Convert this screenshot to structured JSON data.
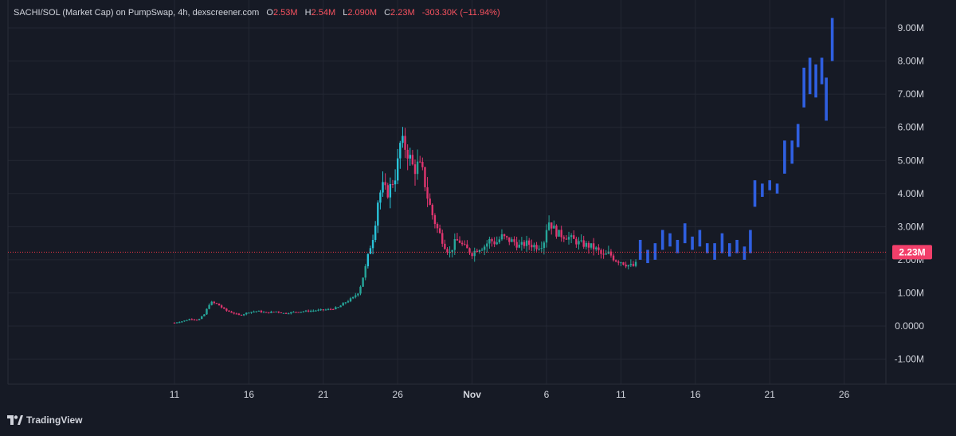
{
  "legend": {
    "symbol": "SACHI/SOL (Market Cap) on PumpSwap, 4h, dexscreener.com",
    "o_label": "O",
    "o_value": "2.53M",
    "h_label": "H",
    "h_value": "2.54M",
    "l_label": "L",
    "l_value": "2.090M",
    "c_label": "C",
    "c_value": "2.23M",
    "change": "-303.30K (−11.94%)"
  },
  "footer": {
    "brand": "TradingView"
  },
  "colors": {
    "background": "#161a25",
    "grid": "#232733",
    "up": "#26a69a",
    "up_cyan": "#29c3d9",
    "down": "#e0356f",
    "projection": "#2f5fe0",
    "price_line": "#f23645",
    "text": "#d1d4dc"
  },
  "chart_data": {
    "type": "candlestick",
    "title": "SACHI/SOL (Market Cap) on PumpSwap, 4h, dexscreener.com",
    "y_unit": "M",
    "ylim": [
      -1.5,
      9.5
    ],
    "y_ticks": [
      9,
      8,
      7,
      6,
      5,
      4,
      3,
      2,
      1,
      0,
      -1
    ],
    "y_tick_labels": [
      "9.00M",
      "8.00M",
      "7.00M",
      "6.00M",
      "5.00M",
      "4.00M",
      "3.00M",
      "2.00M",
      "1.00M",
      "0.0000",
      "-1.00M"
    ],
    "x_ticks": [
      {
        "day": 11,
        "label": "11",
        "bold": false
      },
      {
        "day": 16,
        "label": "16",
        "bold": false
      },
      {
        "day": 21,
        "label": "21",
        "bold": false
      },
      {
        "day": 26,
        "label": "26",
        "bold": false
      },
      {
        "day": 31,
        "label": "Nov",
        "bold": true
      },
      {
        "day": 36,
        "label": "6",
        "bold": false
      },
      {
        "day": 41,
        "label": "11",
        "bold": false
      },
      {
        "day": 46,
        "label": "16",
        "bold": false
      },
      {
        "day": 51,
        "label": "21",
        "bold": false
      },
      {
        "day": 56,
        "label": "26",
        "bold": false
      }
    ],
    "xlim": [
      0.3,
      57.3
    ],
    "current_price": 2.23,
    "current_price_label": "2.23M",
    "grid": true,
    "price_anchors": [
      [
        11.0,
        0.1
      ],
      [
        11.6,
        0.15
      ],
      [
        12.1,
        0.22
      ],
      [
        12.6,
        0.18
      ],
      [
        13.0,
        0.35
      ],
      [
        13.4,
        0.72
      ],
      [
        13.9,
        0.66
      ],
      [
        14.4,
        0.48
      ],
      [
        14.9,
        0.4
      ],
      [
        15.4,
        0.32
      ],
      [
        16.0,
        0.42
      ],
      [
        16.6,
        0.45
      ],
      [
        17.2,
        0.4
      ],
      [
        17.8,
        0.44
      ],
      [
        18.4,
        0.38
      ],
      [
        19.0,
        0.42
      ],
      [
        19.6,
        0.44
      ],
      [
        20.2,
        0.46
      ],
      [
        20.8,
        0.48
      ],
      [
        21.4,
        0.5
      ],
      [
        22.0,
        0.56
      ],
      [
        22.5,
        0.72
      ],
      [
        23.0,
        0.85
      ],
      [
        23.4,
        1.05
      ],
      [
        23.8,
        1.7
      ],
      [
        24.1,
        2.3
      ],
      [
        24.4,
        2.8
      ],
      [
        24.7,
        3.9
      ],
      [
        25.0,
        4.2
      ],
      [
        25.3,
        4.0
      ],
      [
        25.6,
        4.3
      ],
      [
        25.9,
        4.6
      ],
      [
        26.2,
        5.6
      ],
      [
        26.5,
        5.4
      ],
      [
        26.8,
        5.1
      ],
      [
        27.1,
        4.7
      ],
      [
        27.4,
        4.9
      ],
      [
        27.7,
        4.6
      ],
      [
        28.0,
        3.9
      ],
      [
        28.3,
        3.4
      ],
      [
        28.6,
        3.0
      ],
      [
        28.9,
        2.7
      ],
      [
        29.2,
        2.4
      ],
      [
        29.5,
        2.2
      ],
      [
        29.8,
        2.5
      ],
      [
        30.1,
        2.6
      ],
      [
        30.4,
        2.4
      ],
      [
        30.7,
        2.3
      ],
      [
        31.0,
        2.2
      ],
      [
        31.4,
        2.35
      ],
      [
        31.8,
        2.4
      ],
      [
        32.2,
        2.6
      ],
      [
        32.6,
        2.5
      ],
      [
        33.0,
        2.7
      ],
      [
        33.4,
        2.6
      ],
      [
        33.8,
        2.55
      ],
      [
        34.2,
        2.4
      ],
      [
        34.6,
        2.5
      ],
      [
        35.0,
        2.45
      ],
      [
        35.4,
        2.4
      ],
      [
        35.8,
        2.5
      ],
      [
        36.1,
        3.2
      ],
      [
        36.4,
        3.0
      ],
      [
        36.7,
        2.8
      ],
      [
        37.0,
        2.75
      ],
      [
        37.4,
        2.7
      ],
      [
        37.8,
        2.6
      ],
      [
        38.2,
        2.5
      ],
      [
        38.6,
        2.45
      ],
      [
        39.0,
        2.4
      ],
      [
        39.4,
        2.3
      ],
      [
        39.8,
        2.1
      ],
      [
        40.2,
        2.2
      ],
      [
        40.6,
        2.0
      ],
      [
        41.0,
        1.95
      ],
      [
        41.4,
        1.85
      ],
      [
        41.8,
        1.8
      ],
      [
        42.1,
        1.9
      ]
    ],
    "projection": {
      "bars": [
        [
          42.3,
          2.0,
          2.6
        ],
        [
          42.8,
          1.9,
          2.3
        ],
        [
          43.3,
          2.0,
          2.5
        ],
        [
          43.8,
          2.3,
          2.9
        ],
        [
          44.3,
          2.4,
          2.8
        ],
        [
          44.8,
          2.2,
          2.6
        ],
        [
          45.3,
          2.5,
          3.1
        ],
        [
          45.8,
          2.3,
          2.7
        ],
        [
          46.3,
          2.4,
          2.9
        ],
        [
          46.8,
          2.2,
          2.5
        ],
        [
          47.3,
          2.0,
          2.5
        ],
        [
          47.8,
          2.2,
          2.8
        ],
        [
          48.3,
          2.1,
          2.5
        ],
        [
          48.8,
          2.2,
          2.6
        ],
        [
          49.3,
          2.0,
          2.4
        ],
        [
          49.7,
          2.2,
          2.9
        ],
        [
          50.0,
          3.6,
          4.4
        ],
        [
          50.5,
          3.9,
          4.3
        ],
        [
          51.0,
          4.1,
          4.4
        ],
        [
          51.5,
          4.0,
          4.3
        ],
        [
          52.0,
          4.6,
          5.6
        ],
        [
          52.5,
          4.9,
          5.6
        ],
        [
          52.9,
          5.4,
          6.1
        ],
        [
          53.3,
          6.6,
          7.8
        ],
        [
          53.7,
          7.0,
          8.1
        ],
        [
          54.1,
          6.9,
          7.9
        ],
        [
          54.5,
          7.3,
          8.1
        ],
        [
          54.8,
          6.2,
          7.5
        ],
        [
          55.2,
          8.0,
          9.3
        ]
      ]
    }
  }
}
